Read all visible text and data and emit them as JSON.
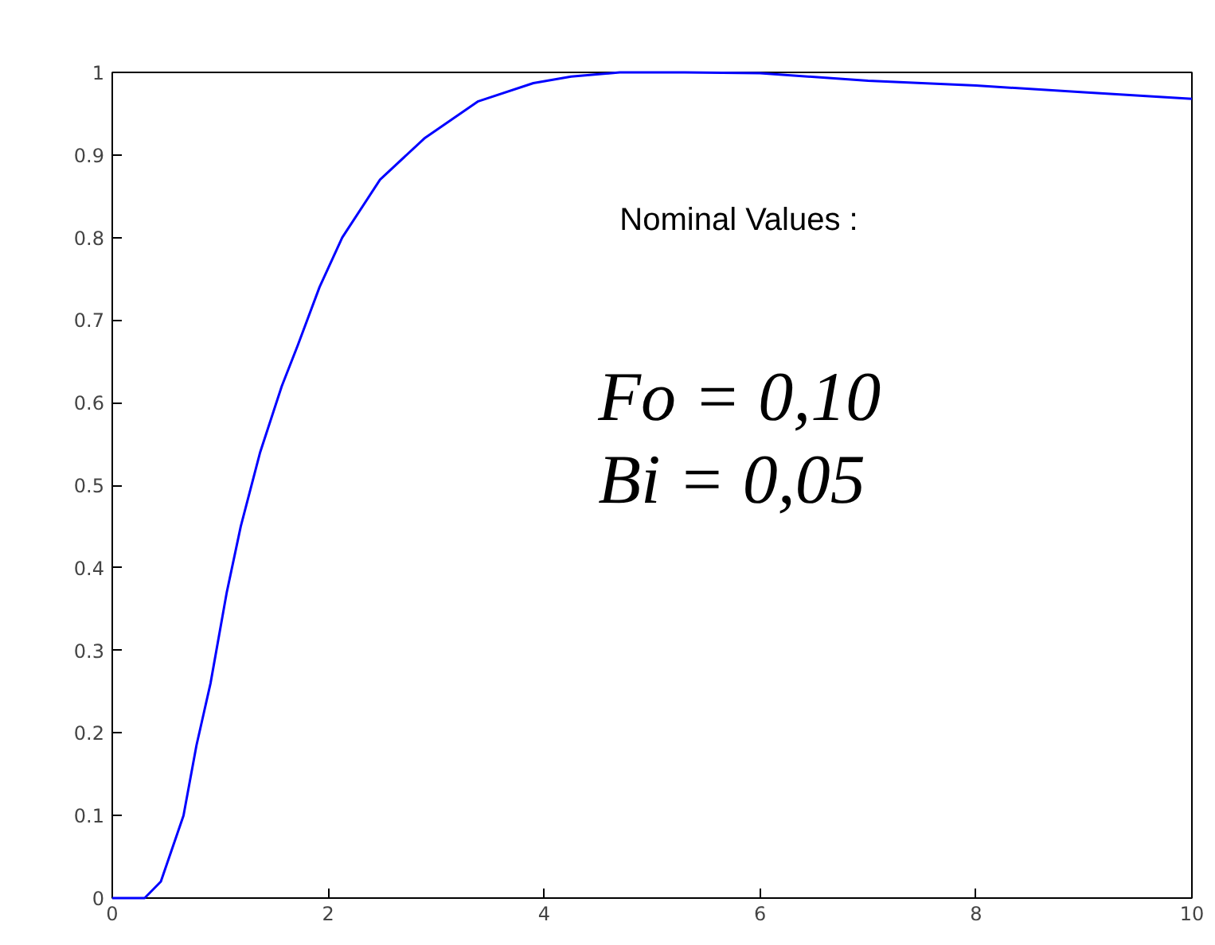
{
  "chart_data": {
    "type": "line",
    "x": [
      0,
      0.3,
      0.45,
      0.66,
      0.78,
      0.91,
      1.06,
      1.19,
      1.37,
      1.57,
      1.72,
      1.92,
      2.13,
      2.48,
      2.89,
      3.39,
      3.9,
      4.25,
      4.7,
      5.3,
      6,
      7,
      8,
      9,
      10
    ],
    "series": [
      {
        "color": "#0000ff",
        "values": [
          0,
          0,
          0.02,
          0.1,
          0.185,
          0.26,
          0.37,
          0.45,
          0.54,
          0.62,
          0.67,
          0.74,
          0.8,
          0.87,
          0.92,
          0.965,
          0.987,
          0.995,
          1.0,
          1.0,
          0.999,
          0.99,
          0.984,
          0.976,
          0.968
        ]
      }
    ],
    "xlim": [
      0,
      10
    ],
    "ylim": [
      0,
      1
    ],
    "xticks": [
      0,
      2,
      4,
      6,
      8,
      10
    ],
    "yticks": [
      0,
      0.1,
      0.2,
      0.3,
      0.4,
      0.5,
      0.6,
      0.7,
      0.8,
      0.9,
      1
    ],
    "grid": false,
    "marker": "none",
    "line_style": "solid",
    "annotations": [
      "Nominal Values :",
      "Fo = 0,10",
      "Bi = 0,05"
    ]
  }
}
